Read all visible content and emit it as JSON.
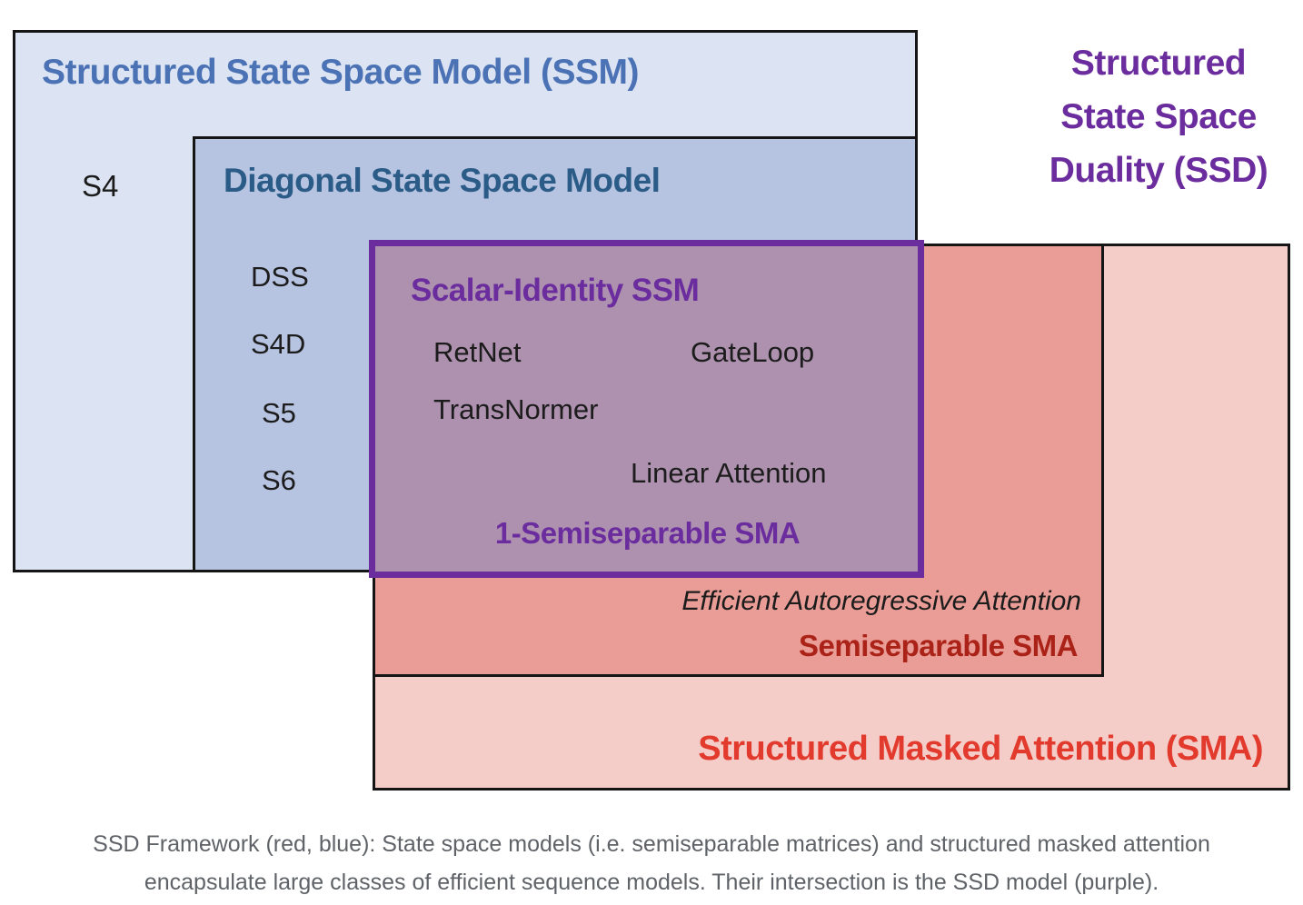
{
  "diagram": {
    "ssm": {
      "title": "Structured State Space Model (SSM)",
      "item": "S4"
    },
    "diagonal": {
      "title": "Diagonal State Space Model",
      "items": [
        "DSS",
        "S4D",
        "S5",
        "S6"
      ]
    },
    "ssd_intersection": {
      "title": "Scalar-Identity SSM",
      "items": [
        "RetNet",
        "GateLoop",
        "TransNormer",
        "Linear Attention"
      ],
      "footer": "1-Semiseparable SMA"
    },
    "semiseparable": {
      "subtitle": "Efficient Autoregressive Attention",
      "title": "Semiseparable SMA"
    },
    "sma": {
      "title": "Structured Masked Attention (SMA)"
    },
    "ssd_label": {
      "line1": "Structured",
      "line2": "State Space",
      "line3": "Duality (SSD)"
    }
  },
  "caption": {
    "line1": "SSD Framework (red, blue): State space models (i.e. semiseparable matrices) and structured masked attention",
    "line2": "encapsulate large classes of efficient sequence models. Their intersection is the SSD model (purple)."
  },
  "colors": {
    "ssm_fill": "#dce3f2",
    "diagonal_fill": "#b6c3e1",
    "intersection_fill": "#ad91af",
    "semiseparable_fill": "#e99d96",
    "sma_fill": "#f4cdc9",
    "purple": "#6b2d9e",
    "ssm_title_blue": "#4a72b4",
    "diagonal_title_navy": "#2b5c88",
    "semiseparable_dark_red": "#ab2318",
    "sma_red": "#e23b2e",
    "border_black": "#151515",
    "caption_gray": "#5f6368"
  }
}
